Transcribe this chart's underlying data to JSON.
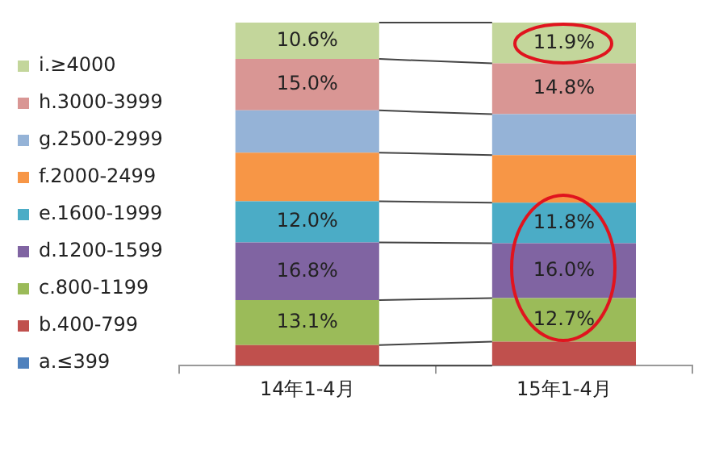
{
  "chart_data": {
    "type": "bar",
    "stacked": true,
    "legend": "left",
    "data_labels": false,
    "categories": [
      "14年1-4月",
      "15年1-4月"
    ],
    "series": [
      {
        "name": "a.≤399",
        "color": "#4f81bd",
        "values": [
          0,
          0
        ],
        "value_labels": [
          null,
          null
        ]
      },
      {
        "name": "b.400-799",
        "color": "#c0504d",
        "values": [
          6.0,
          7.0
        ],
        "value_labels": [
          null,
          null
        ]
      },
      {
        "name": "c.800-1199",
        "color": "#9bbb59",
        "values": [
          13.1,
          12.7
        ],
        "value_labels": [
          "13.1%",
          "12.7%"
        ]
      },
      {
        "name": "d.1200-1599",
        "color": "#8064a2",
        "values": [
          16.8,
          16.0
        ],
        "value_labels": [
          "16.8%",
          "16.0%"
        ]
      },
      {
        "name": "e.1600-1999",
        "color": "#4bacc6",
        "values": [
          12.0,
          11.8
        ],
        "value_labels": [
          "12.0%",
          "11.8%"
        ]
      },
      {
        "name": "f.2000-2499",
        "color": "#f79646",
        "values": [
          14.2,
          13.9
        ],
        "value_labels": [
          null,
          null
        ]
      },
      {
        "name": "g.2500-2999",
        "color": "#95b3d7",
        "values": [
          12.3,
          11.9
        ],
        "value_labels": [
          null,
          null
        ]
      },
      {
        "name": "h.3000-3999",
        "color": "#d99694",
        "values": [
          15.0,
          14.8
        ],
        "value_labels": [
          "15.0%",
          "14.8%"
        ]
      },
      {
        "name": "i.≥4000",
        "color": "#c3d69b",
        "values": [
          10.6,
          11.9
        ],
        "value_labels": [
          "10.6%",
          "11.9%"
        ]
      }
    ]
  }
}
